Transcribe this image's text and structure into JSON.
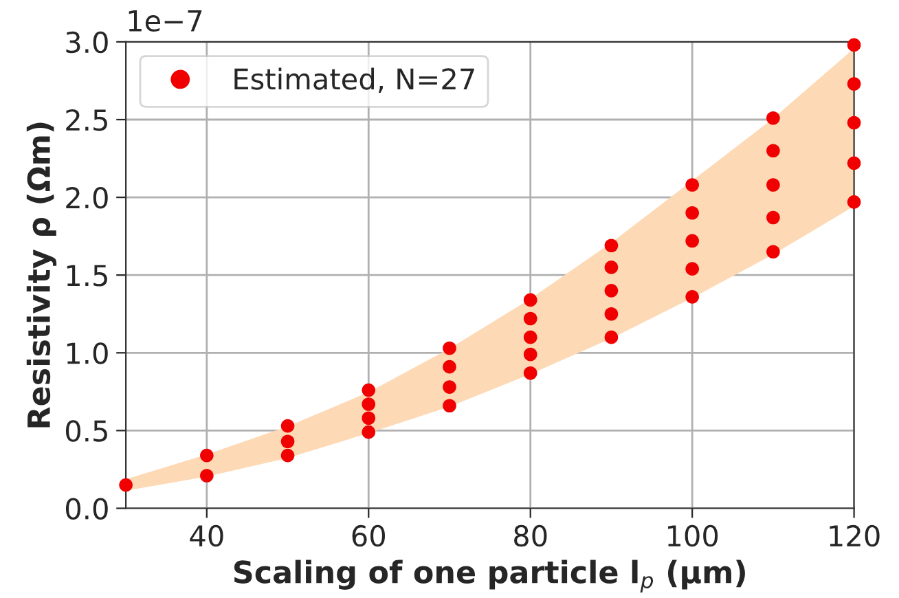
{
  "chart_data": {
    "type": "scatter",
    "xlabel": "Scaling of one particle l$_{p}$ (μm)",
    "ylabel": "Resistivity ρ (Ωm)",
    "annotations": [
      "1e−7"
    ],
    "xlim": [
      30,
      120
    ],
    "xticks": [
      40,
      60,
      80,
      100,
      120
    ],
    "ylim": [
      0,
      3.0
    ],
    "yticks": [
      {
        "value": 0,
        "label": "0.0"
      },
      {
        "value": 0.5,
        "label": "0.5"
      },
      {
        "value": 1.0,
        "label": "1.0"
      },
      {
        "value": 1.5,
        "label": "1.5"
      },
      {
        "value": 2.0,
        "label": "2.0"
      },
      {
        "value": 2.5,
        "label": "2.5"
      },
      {
        "value": 3.0,
        "label": "3.0"
      }
    ],
    "grid": true,
    "legend": "top left",
    "series": [
      {
        "type": "area",
        "color": "#fdd9b5",
        "x": [
          30,
          40,
          50,
          60,
          70,
          80,
          90,
          100,
          110,
          120
        ],
        "values": [
          null,
          null,
          null,
          null,
          null,
          null,
          null,
          null,
          null,
          null
        ],
        "lower": [
          0.12,
          0.21,
          0.33,
          0.49,
          0.66,
          0.87,
          1.1,
          1.36,
          1.64,
          1.95
        ],
        "upper": [
          0.18,
          0.34,
          0.52,
          0.74,
          1.02,
          1.34,
          1.7,
          2.1,
          2.5,
          2.95
        ]
      },
      {
        "name": "Estimated, N=27",
        "color": "#f00000",
        "marker": "circle",
        "x": [
          30,
          40,
          40,
          50,
          50,
          50,
          60,
          60,
          60,
          60,
          70,
          70,
          70,
          70,
          80,
          80,
          80,
          80,
          80,
          90,
          90,
          90,
          90,
          90,
          100,
          100,
          100,
          100,
          100,
          110,
          110,
          110,
          110,
          110,
          120,
          120,
          120,
          120,
          120
        ],
        "values": [
          0.15,
          0.21,
          0.34,
          0.34,
          0.43,
          0.53,
          0.49,
          0.58,
          0.67,
          0.76,
          0.66,
          0.78,
          0.91,
          1.03,
          0.87,
          0.99,
          1.1,
          1.22,
          1.34,
          1.1,
          1.25,
          1.4,
          1.55,
          1.69,
          1.36,
          1.54,
          1.72,
          1.9,
          2.08,
          1.65,
          1.87,
          2.08,
          2.3,
          2.51,
          1.97,
          2.22,
          2.48,
          2.73,
          2.98
        ]
      }
    ]
  }
}
